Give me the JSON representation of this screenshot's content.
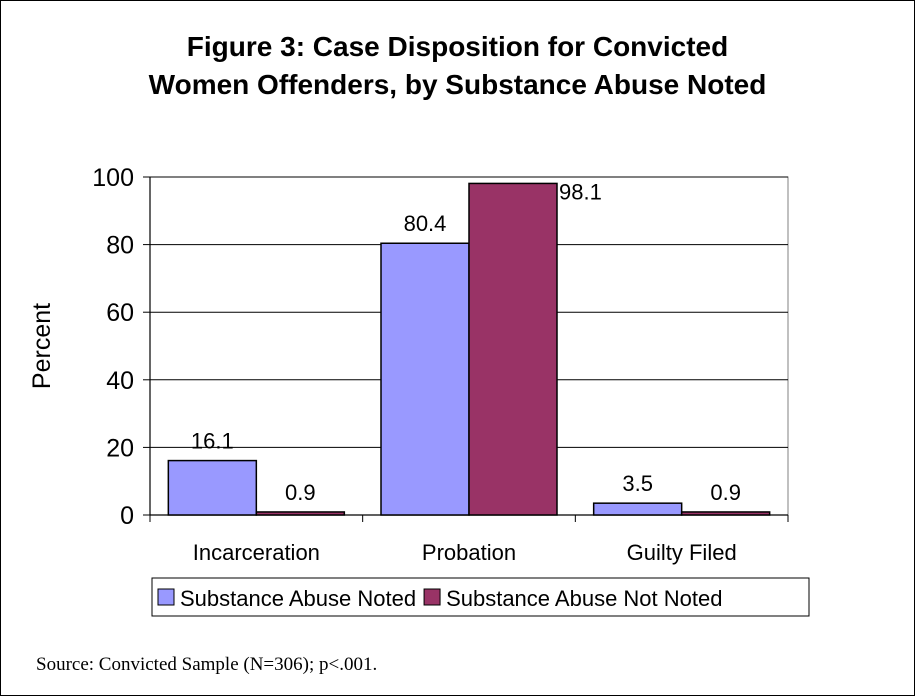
{
  "chart_data": {
    "type": "bar",
    "title_lines": [
      "Figure 3: Case Disposition for Convicted",
      "Women Offenders, by Substance Abuse Noted"
    ],
    "ylabel": "Percent",
    "xlabel": "",
    "ylim": [
      0,
      100
    ],
    "yticks": [
      0,
      20,
      40,
      60,
      80,
      100
    ],
    "grid": true,
    "legend_position": "bottom",
    "categories": [
      "Incarceration",
      "Probation",
      "Guilty Filed"
    ],
    "series": [
      {
        "name": "Substance Abuse Noted",
        "color": "#9999ff",
        "values": [
          16.1,
          80.4,
          3.5
        ],
        "labels": [
          "16.1",
          "80.4",
          "3.5"
        ]
      },
      {
        "name": "Substance Abuse Not Noted",
        "color": "#993366",
        "values": [
          0.9,
          98.1,
          0.9
        ],
        "labels": [
          "0.9",
          "98.1",
          "0.9"
        ]
      }
    ]
  },
  "footer": {
    "source": "Source: Convicted Sample (N=306); p<.001."
  }
}
